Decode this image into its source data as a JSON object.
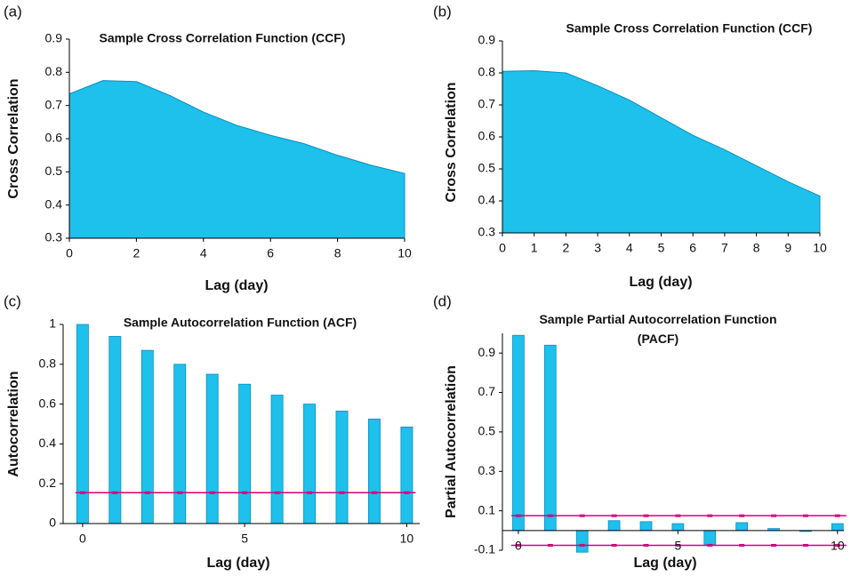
{
  "chart_data": [
    {
      "type": "area",
      "panel": "(a)",
      "title": "Sample Cross Correlation Function (CCF)",
      "x_label": "Lag (day)",
      "y_label": "Cross Correlation",
      "x": [
        0,
        1,
        2,
        3,
        4,
        5,
        6,
        7,
        8,
        9,
        10
      ],
      "values": [
        0.735,
        0.775,
        0.772,
        0.73,
        0.68,
        0.64,
        0.61,
        0.585,
        0.55,
        0.52,
        0.495
      ],
      "color": "#1ec0ec",
      "xlim": [
        0,
        10
      ],
      "xticks": [
        0,
        2,
        4,
        6,
        8,
        10
      ],
      "ylim": [
        0.3,
        0.9
      ],
      "yticks": [
        0.3,
        0.4,
        0.5,
        0.6,
        0.7,
        0.8,
        0.9
      ]
    },
    {
      "type": "area",
      "panel": "(b)",
      "title": "Sample Cross Correlation Function (CCF)",
      "x_label": "Lag (day)",
      "y_label": "Cross Correlation",
      "x": [
        0,
        1,
        2,
        3,
        4,
        5,
        6,
        7,
        8,
        9,
        10
      ],
      "values": [
        0.805,
        0.807,
        0.8,
        0.76,
        0.715,
        0.66,
        0.605,
        0.56,
        0.51,
        0.46,
        0.415
      ],
      "color": "#1ec0ec",
      "xlim": [
        0,
        10
      ],
      "xticks": [
        0,
        1,
        2,
        3,
        4,
        5,
        6,
        7,
        8,
        9,
        10
      ],
      "ylim": [
        0.3,
        0.9
      ],
      "yticks": [
        0.3,
        0.4,
        0.5,
        0.6,
        0.7,
        0.8,
        0.9
      ]
    },
    {
      "type": "bar",
      "panel": "(c)",
      "title": "Sample Autocorrelation Function (ACF)",
      "x_label": "Lag (day)",
      "y_label": "Autocorrelation",
      "x": [
        0,
        1,
        2,
        3,
        4,
        5,
        6,
        7,
        8,
        9,
        10
      ],
      "values": [
        1.0,
        0.94,
        0.87,
        0.8,
        0.75,
        0.7,
        0.645,
        0.6,
        0.565,
        0.525,
        0.485
      ],
      "color": "#1ec0ec",
      "bounds": [
        0.155
      ],
      "bounds_color": "#d6007a",
      "xlim": [
        -0.6,
        10.4
      ],
      "xticks": [
        0,
        5,
        10
      ],
      "ylim": [
        0,
        1
      ],
      "yticks": [
        0,
        0.2,
        0.4,
        0.6,
        0.8,
        1
      ]
    },
    {
      "type": "bar",
      "panel": "(d)",
      "title": "Sample Partial Autocorrelation Function (PACF)",
      "x_label": "Lag (day)",
      "y_label": "Partial Autocorrelation",
      "x": [
        0,
        1,
        2,
        3,
        4,
        5,
        6,
        7,
        8,
        9,
        10
      ],
      "values": [
        0.99,
        0.94,
        -0.11,
        0.05,
        0.045,
        0.035,
        -0.07,
        0.04,
        0.01,
        -0.005,
        0.035
      ],
      "color": "#1ec0ec",
      "bounds": [
        0.075,
        -0.075
      ],
      "bounds_color": "#d6007a",
      "xlim": [
        -0.5,
        10.2
      ],
      "xticks": [
        0,
        5,
        10
      ],
      "ylim": [
        -0.1,
        1.0
      ],
      "yticks": [
        -0.1,
        0.1,
        0.3,
        0.5,
        0.7,
        0.9
      ]
    }
  ]
}
